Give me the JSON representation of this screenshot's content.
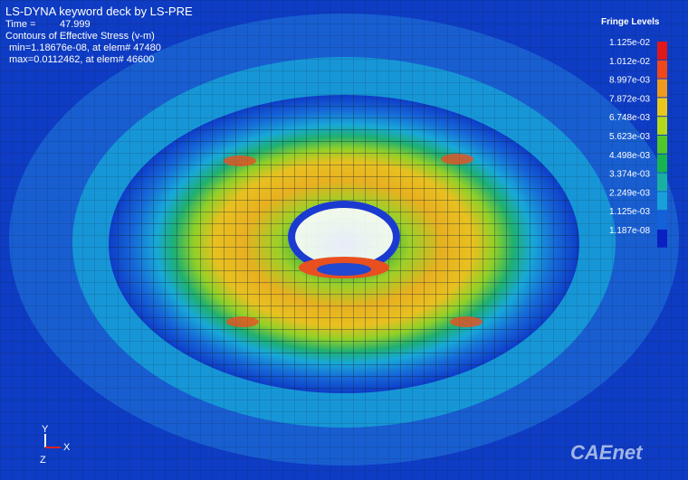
{
  "header": {
    "title": "LS-DYNA keyword deck by LS-PRE",
    "time_label": "Time =",
    "time_value": "47.999",
    "contour_title": "Contours of Effective Stress (v-m)",
    "min_line": "min=1.18676e-08, at elem# 47480",
    "max_line": "max=0.0112462, at elem# 46600"
  },
  "legend": {
    "title": "Fringe Levels",
    "levels": [
      {
        "label": "1.125e-02",
        "color": "#e01818"
      },
      {
        "label": "1.012e-02",
        "color": "#f04818"
      },
      {
        "label": "8.997e-03",
        "color": "#f09a20"
      },
      {
        "label": "7.872e-03",
        "color": "#e8c81c"
      },
      {
        "label": "6.748e-03",
        "color": "#b4d81c"
      },
      {
        "label": "5.623e-03",
        "color": "#50c828"
      },
      {
        "label": "4.498e-03",
        "color": "#18b450"
      },
      {
        "label": "3.374e-03",
        "color": "#18b0a0"
      },
      {
        "label": "2.249e-03",
        "color": "#18a0d8"
      },
      {
        "label": "1.125e-03",
        "color": "#1460d8"
      },
      {
        "label": "1.187e-08",
        "color": "#0a20c0"
      }
    ]
  },
  "axes": {
    "y": "Y",
    "x": "X",
    "z": "Z"
  },
  "watermark": "CAEnet"
}
